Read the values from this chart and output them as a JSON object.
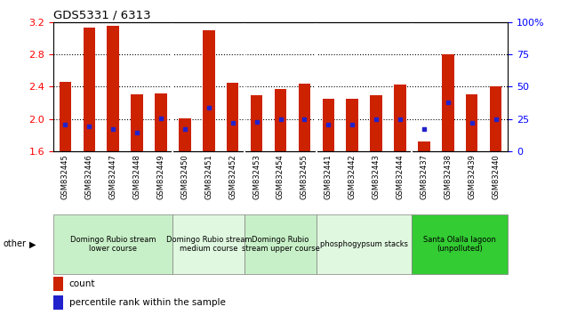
{
  "title": "GDS5331 / 6313",
  "samples": [
    "GSM832445",
    "GSM832446",
    "GSM832447",
    "GSM832448",
    "GSM832449",
    "GSM832450",
    "GSM832451",
    "GSM832452",
    "GSM832453",
    "GSM832454",
    "GSM832455",
    "GSM832441",
    "GSM832442",
    "GSM832443",
    "GSM832444",
    "GSM832437",
    "GSM832438",
    "GSM832439",
    "GSM832440"
  ],
  "bar_values": [
    2.46,
    3.13,
    3.15,
    2.31,
    2.32,
    2.01,
    3.1,
    2.45,
    2.29,
    2.37,
    2.44,
    2.25,
    2.25,
    2.29,
    2.43,
    1.72,
    2.8,
    2.31,
    2.4
  ],
  "percentile_values": [
    1.93,
    1.91,
    1.88,
    1.83,
    2.01,
    1.88,
    2.14,
    1.95,
    1.96,
    2.0,
    2.0,
    1.93,
    1.93,
    2.0,
    2.0,
    1.88,
    2.2,
    1.95,
    2.0
  ],
  "ymin": 1.6,
  "ymax": 3.2,
  "yticks_left": [
    1.6,
    2.0,
    2.4,
    2.8,
    3.2
  ],
  "yticks_right_vals": [
    0,
    25,
    50,
    75,
    100
  ],
  "yticks_right_labels": [
    "0",
    "25",
    "50",
    "75",
    "100%"
  ],
  "bar_color": "#cc2200",
  "percentile_color": "#2222cc",
  "dotted_lines": [
    2.0,
    2.4,
    2.8
  ],
  "groups": [
    {
      "label": "Domingo Rubio stream\nlower course",
      "start": 0,
      "end": 4,
      "color": "#c8f0c8"
    },
    {
      "label": "Domingo Rubio stream\nmedium course",
      "start": 5,
      "end": 7,
      "color": "#e0f8e0"
    },
    {
      "label": "Domingo Rubio\nstream upper course",
      "start": 8,
      "end": 10,
      "color": "#c8f0c8"
    },
    {
      "label": "phosphogypsum stacks",
      "start": 11,
      "end": 14,
      "color": "#e0f8e0"
    },
    {
      "label": "Santa Olalla lagoon\n(unpolluted)",
      "start": 15,
      "end": 18,
      "color": "#33cc33"
    }
  ],
  "group_sep_color": "#888888",
  "xtick_bg": "#d0d0d0",
  "plot_bg": "#ffffff",
  "other_label": "other",
  "legend_count": "count",
  "legend_pct": "percentile rank within the sample",
  "bar_width": 0.5
}
